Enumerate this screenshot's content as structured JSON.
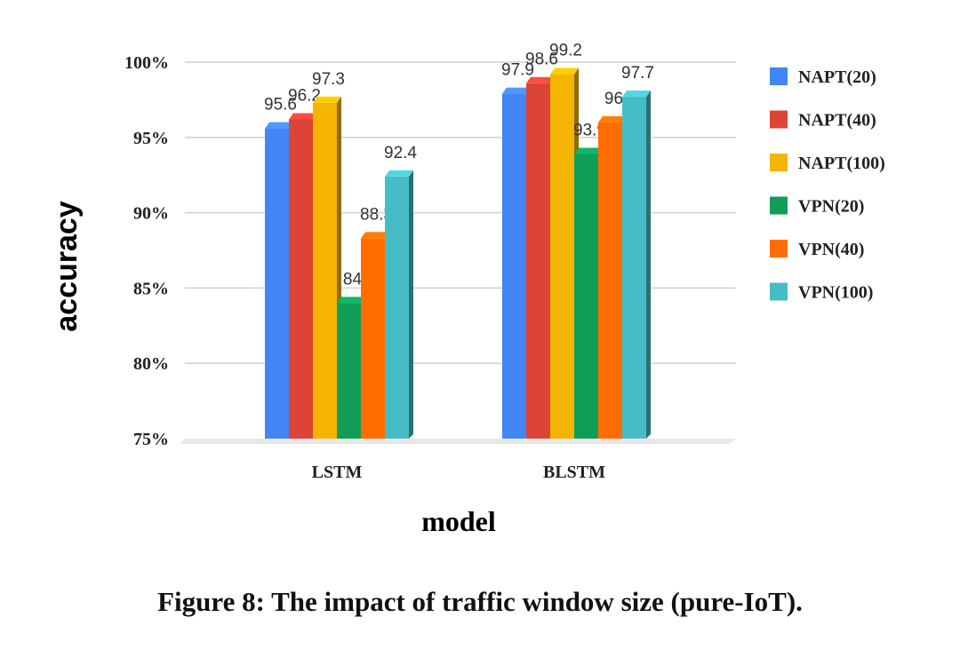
{
  "chart_data": {
    "type": "bar",
    "categories": [
      "LSTM",
      "BLSTM"
    ],
    "series": [
      {
        "name": "NAPT(20)",
        "values": [
          95.6,
          97.9
        ],
        "color": "#4285f4"
      },
      {
        "name": "NAPT(40)",
        "values": [
          96.2,
          98.6
        ],
        "color": "#db4437"
      },
      {
        "name": "NAPT(100)",
        "values": [
          97.3,
          99.2
        ],
        "color": "#f4b400"
      },
      {
        "name": "VPN(20)",
        "values": [
          84,
          93.9
        ],
        "color": "#0f9d58"
      },
      {
        "name": "VPN(40)",
        "values": [
          88.3,
          96
        ],
        "color": "#ff6d00"
      },
      {
        "name": "VPN(100)",
        "values": [
          92.4,
          97.7
        ],
        "color": "#46bdc6"
      }
    ],
    "xlabel": "model",
    "ylabel": "accuracy",
    "ylim": [
      75,
      100
    ],
    "yticks": [
      "75%",
      "80%",
      "85%",
      "90%",
      "95%",
      "100%"
    ],
    "grid": true,
    "legend": "right",
    "style": "3d"
  },
  "caption": "Figure 8: The impact of traffic window size (pure-IoT)."
}
